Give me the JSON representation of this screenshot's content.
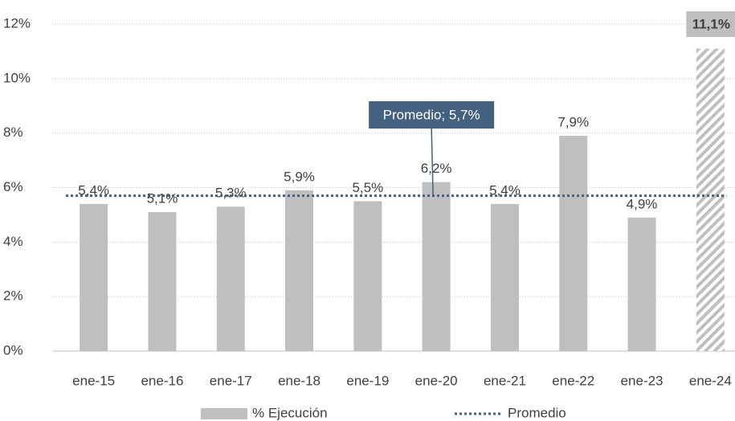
{
  "chart_data": {
    "type": "bar",
    "categories": [
      "ene-15",
      "ene-16",
      "ene-17",
      "ene-18",
      "ene-19",
      "ene-20",
      "ene-21",
      "ene-22",
      "ene-23",
      "ene-24"
    ],
    "series": [
      {
        "name": "% Ejecución",
        "color": "#bfbfbf",
        "values": [
          5.4,
          5.1,
          5.3,
          5.9,
          5.5,
          6.2,
          5.4,
          7.9,
          4.9,
          11.1
        ],
        "value_labels": [
          "5,4%",
          "5,1%",
          "5,3%",
          "5,9%",
          "5,5%",
          "6,2%",
          "5,4%",
          "7,9%",
          "4,9%",
          "11,1%"
        ]
      }
    ],
    "average": {
      "name": "Promedio",
      "color": "#44627f",
      "value": 5.7,
      "label": "Promedio; 5,7%"
    },
    "hatch_last": true,
    "ylim": [
      0,
      12
    ],
    "yticks": [
      {
        "value": 0,
        "label": "0%"
      },
      {
        "value": 2,
        "label": "2%"
      },
      {
        "value": 4,
        "label": "4%"
      },
      {
        "value": 6,
        "label": "6%"
      },
      {
        "value": 8,
        "label": "8%"
      },
      {
        "value": 10,
        "label": "10%"
      },
      {
        "value": 12,
        "label": "12%"
      }
    ],
    "grid": true,
    "legend": "bottom"
  }
}
